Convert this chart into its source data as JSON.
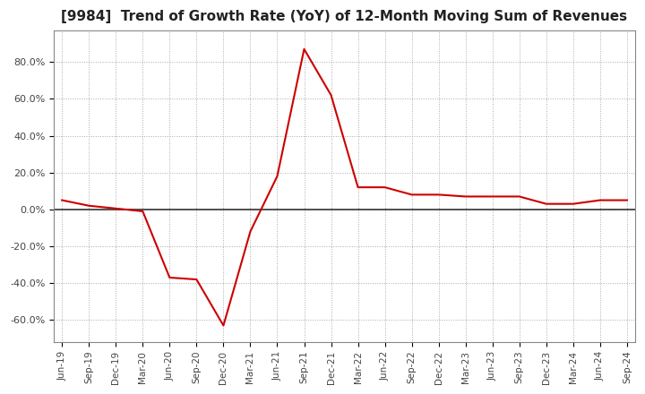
{
  "title": "[9984]  Trend of Growth Rate (YoY) of 12-Month Moving Sum of Revenues",
  "title_fontsize": 11,
  "title_color": "#222222",
  "line_color": "#cc0000",
  "background_color": "#ffffff",
  "grid_color": "#aaaaaa",
  "zero_line_color": "#333333",
  "ylim": [
    -72,
    97
  ],
  "yticks": [
    -60,
    -40,
    -20,
    0,
    20,
    40,
    60,
    80
  ],
  "x_labels": [
    "Jun-19",
    "Sep-19",
    "Dec-19",
    "Mar-20",
    "Jun-20",
    "Sep-20",
    "Dec-20",
    "Mar-21",
    "Jun-21",
    "Sep-21",
    "Dec-21",
    "Mar-22",
    "Jun-22",
    "Sep-22",
    "Dec-22",
    "Mar-23",
    "Jun-23",
    "Sep-23",
    "Dec-23",
    "Mar-24",
    "Jun-24",
    "Sep-24"
  ],
  "values": [
    5.0,
    2.0,
    0.5,
    -1.0,
    -37.0,
    -38.0,
    -63.0,
    -12.0,
    18.0,
    87.0,
    62.0,
    12.0,
    12.0,
    8.0,
    8.0,
    7.0,
    7.0,
    7.0,
    3.0,
    3.0,
    5.0,
    5.0
  ]
}
